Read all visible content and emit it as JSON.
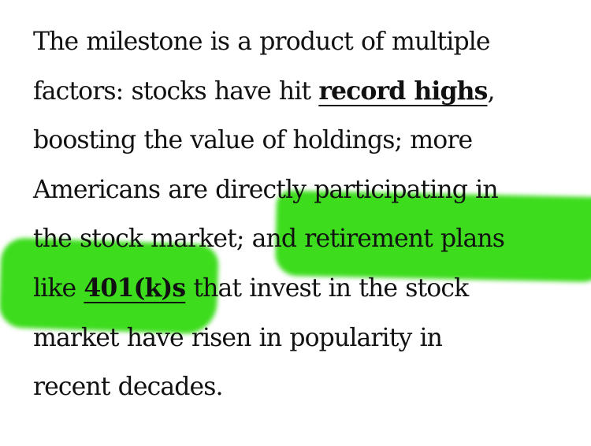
{
  "article": {
    "lines": [
      {
        "text": "The milestone is a product of multiple"
      },
      {
        "before": "factors: stocks have hit ",
        "link": "record highs",
        "after": ","
      },
      {
        "text": "boosting the value of holdings; more"
      },
      {
        "text": "Americans are directly participating in"
      },
      {
        "text": "the stock market; and retirement plans"
      },
      {
        "before": "like ",
        "link": "401(k)s",
        "after": " that invest in the stock"
      },
      {
        "text": "market have risen in popularity in"
      },
      {
        "text": "recent decades."
      }
    ],
    "links": [
      "record highs",
      "401(k)s"
    ]
  },
  "annotations": {
    "highlight_color": "#3ddc1d",
    "highlights": [
      {
        "covers": "and retirement plans"
      },
      {
        "covers": "like 401(k)s that / market have"
      }
    ]
  }
}
